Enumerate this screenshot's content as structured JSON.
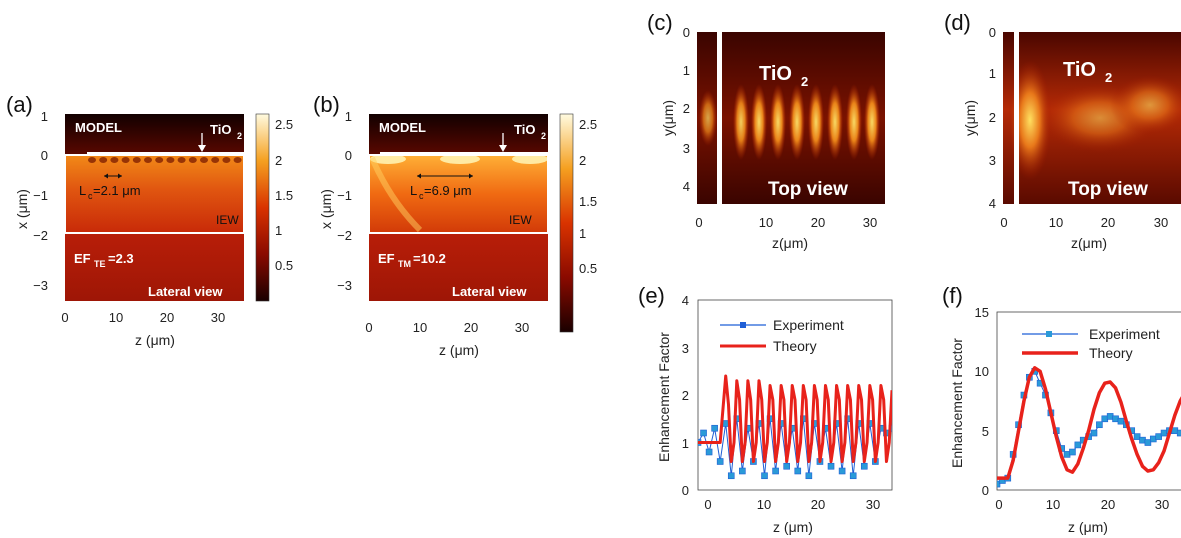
{
  "panels": {
    "a": {
      "label": "(a)",
      "model_text": "MODEL",
      "material": "TiO",
      "material_sub": "2",
      "lc_text": "L",
      "lc_sub": "c",
      "lc_value": "=2.1 μm",
      "iew_text": "IEW",
      "ef_text": "EF",
      "ef_sub": "TE",
      "ef_value": "=2.3",
      "view_text": "Lateral view",
      "xlabel": "z (μm)",
      "ylabel": "x (μm)",
      "xticks": [
        "0",
        "10",
        "20",
        "30"
      ],
      "yticks": [
        "1",
        "0",
        "−1",
        "−2",
        "−3"
      ],
      "colorbar_ticks": [
        "2.5",
        "2",
        "1.5",
        "1",
        "0.5"
      ]
    },
    "b": {
      "label": "(b)",
      "model_text": "MODEL",
      "material": "TiO",
      "material_sub": "2",
      "lc_text": "L",
      "lc_sub": "c",
      "lc_value": "=6.9 μm",
      "iew_text": "IEW",
      "ef_text": "EF",
      "ef_sub": "TM",
      "ef_value": "=10.2",
      "view_text": "Lateral view",
      "xlabel": "z (μm)",
      "ylabel": "x (μm)",
      "xticks": [
        "0",
        "10",
        "20",
        "30"
      ],
      "yticks": [
        "1",
        "0",
        "−1",
        "−2",
        "−3"
      ],
      "colorbar_ticks": [
        "2.5",
        "2",
        "1.5",
        "1",
        "0.5"
      ]
    },
    "c": {
      "label": "(c)",
      "material": "TiO",
      "material_sub": "2",
      "view_text": "Top view",
      "xlabel": "z(μm)",
      "ylabel": "y(μm)",
      "xticks": [
        "0",
        "10",
        "20",
        "30"
      ],
      "yticks": [
        "0",
        "1",
        "2",
        "3",
        "4"
      ]
    },
    "d": {
      "label": "(d)",
      "material": "TiO",
      "material_sub": "2",
      "view_text": "Top view",
      "xlabel": "z(μm)",
      "ylabel": "y(μm)",
      "xticks": [
        "0",
        "10",
        "20",
        "30"
      ],
      "yticks": [
        "0",
        "1",
        "2",
        "3",
        "4"
      ]
    },
    "e": {
      "label": "(e)",
      "xlabel": "z (μm)",
      "ylabel": "Enhancement Factor",
      "xticks": [
        "0",
        "10",
        "20",
        "30"
      ],
      "yticks": [
        "0",
        "1",
        "2",
        "3",
        "4"
      ],
      "legend": [
        "Experiment",
        "Theory"
      ]
    },
    "f": {
      "label": "(f)",
      "xlabel": "z (μm)",
      "ylabel": "Enhancement Factor",
      "xticks": [
        "0",
        "10",
        "20",
        "30"
      ],
      "yticks": [
        "0",
        "5",
        "10",
        "15"
      ],
      "legend": [
        "Experiment",
        "Theory"
      ]
    }
  },
  "colors": {
    "experiment": "#1f5fd6",
    "experiment_fill": "#2a9ad8",
    "theory": "#e8221b",
    "heat_dark": "#2a0000",
    "heat_mid": "#c92a00",
    "heat_bright": "#ffd94a"
  },
  "chart_data": [
    {
      "type": "line",
      "panel": "e",
      "xlabel": "z (μm)",
      "ylabel": "Enhancement Factor",
      "xlim": [
        0,
        35
      ],
      "ylim": [
        0,
        4
      ],
      "series": [
        {
          "name": "Experiment",
          "x": [
            0,
            1,
            2,
            3,
            4,
            5,
            6,
            7,
            8,
            9,
            10,
            11,
            12,
            13,
            14,
            15,
            16,
            17,
            18,
            19,
            20,
            21,
            22,
            23,
            24,
            25,
            26,
            27,
            28,
            29,
            30,
            31,
            32,
            33,
            34,
            35
          ],
          "values": [
            1.0,
            1.2,
            0.8,
            1.3,
            0.6,
            1.4,
            0.3,
            1.5,
            0.4,
            1.3,
            0.6,
            1.4,
            0.3,
            1.5,
            0.4,
            1.4,
            0.5,
            1.3,
            0.4,
            1.5,
            0.3,
            1.4,
            0.6,
            1.3,
            0.5,
            1.4,
            0.4,
            1.5,
            0.3,
            1.4,
            0.5,
            1.4,
            0.6,
            1.3,
            1.2,
            1.3
          ]
        },
        {
          "name": "Theory",
          "x": [
            0,
            1,
            2,
            3,
            4,
            4.5,
            5,
            5.5,
            6,
            6.5,
            7,
            7.5,
            8,
            8.5,
            9,
            9.5,
            10,
            10.5,
            11,
            11.5,
            12,
            12.5,
            13,
            13.5,
            14,
            14.5,
            15,
            15.5,
            16,
            16.5,
            17,
            17.5,
            18,
            18.5,
            19,
            19.5,
            20,
            20.5,
            21,
            21.5,
            22,
            22.5,
            23,
            23.5,
            24,
            24.5,
            25,
            25.5,
            26,
            26.5,
            27,
            27.5,
            28,
            28.5,
            29,
            29.5,
            30,
            30.5,
            31,
            31.5,
            32,
            32.5,
            33,
            33.5,
            34,
            34.5,
            35
          ],
          "values": [
            1.0,
            1.0,
            1.0,
            1.0,
            1.0,
            1.7,
            2.4,
            1.8,
            0.6,
            1.0,
            2.3,
            1.9,
            0.6,
            1.0,
            2.3,
            1.9,
            0.6,
            1.0,
            2.3,
            1.9,
            0.6,
            1.0,
            2.2,
            1.9,
            0.6,
            1.0,
            2.2,
            1.9,
            0.6,
            1.0,
            2.2,
            1.9,
            0.6,
            1.0,
            2.2,
            1.9,
            0.6,
            1.0,
            2.2,
            1.9,
            0.6,
            1.0,
            2.2,
            1.9,
            0.6,
            1.0,
            2.2,
            1.9,
            0.6,
            1.0,
            2.2,
            1.9,
            0.6,
            1.0,
            2.2,
            1.9,
            0.6,
            1.0,
            2.2,
            1.9,
            0.6,
            1.0,
            2.2,
            1.9,
            0.6,
            1.0,
            2.1
          ]
        }
      ]
    },
    {
      "type": "line",
      "panel": "f",
      "xlabel": "z (μm)",
      "ylabel": "Enhancement Factor",
      "xlim": [
        0,
        36
      ],
      "ylim": [
        0,
        15
      ],
      "series": [
        {
          "name": "Experiment",
          "x": [
            0,
            1,
            2,
            3,
            4,
            5,
            6,
            7,
            8,
            9,
            10,
            11,
            12,
            13,
            14,
            15,
            16,
            17,
            18,
            19,
            20,
            21,
            22,
            23,
            24,
            25,
            26,
            27,
            28,
            29,
            30,
            31,
            32,
            33,
            34,
            35,
            36
          ],
          "values": [
            0.5,
            0.8,
            1.0,
            3.0,
            5.5,
            8.0,
            9.5,
            10.0,
            9.0,
            8.0,
            6.5,
            5.0,
            3.5,
            3.0,
            3.2,
            3.8,
            4.2,
            4.5,
            4.8,
            5.5,
            6.0,
            6.2,
            6.0,
            5.8,
            5.5,
            5.0,
            4.5,
            4.2,
            4.0,
            4.3,
            4.5,
            4.8,
            5.0,
            5.0,
            4.8,
            5.0,
            5.2
          ]
        },
        {
          "name": "Theory",
          "x": [
            0,
            1,
            2,
            3,
            4,
            5,
            6,
            7,
            8,
            9,
            10,
            11,
            12,
            13,
            14,
            15,
            16,
            17,
            18,
            19,
            20,
            21,
            22,
            23,
            24,
            25,
            26,
            27,
            28,
            29,
            30,
            31,
            32,
            33,
            34,
            35,
            36
          ],
          "values": [
            1.0,
            1.0,
            1.0,
            2.5,
            5.0,
            7.5,
            9.5,
            10.3,
            10.0,
            8.5,
            6.5,
            4.5,
            2.8,
            1.7,
            1.5,
            2.2,
            3.5,
            5.0,
            6.8,
            8.2,
            9.0,
            9.1,
            8.6,
            7.4,
            5.8,
            4.3,
            3.0,
            2.0,
            1.6,
            1.7,
            2.3,
            3.3,
            4.8,
            6.3,
            7.5,
            8.3,
            8.6
          ]
        }
      ]
    }
  ]
}
